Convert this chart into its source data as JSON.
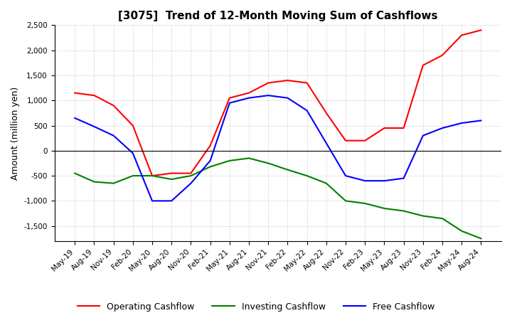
{
  "title": "[3075]  Trend of 12-Month Moving Sum of Cashflows",
  "ylabel": "Amount (million yen)",
  "ylim": [
    -1800,
    2500
  ],
  "yticks": [
    -1500,
    -1000,
    -500,
    0,
    500,
    1000,
    1500,
    2000,
    2500
  ],
  "x_labels": [
    "May-19",
    "Aug-19",
    "Nov-19",
    "Feb-20",
    "May-20",
    "Aug-20",
    "Nov-20",
    "Feb-21",
    "May-21",
    "Aug-21",
    "Nov-21",
    "Feb-22",
    "May-22",
    "Aug-22",
    "Nov-22",
    "Feb-23",
    "May-23",
    "Aug-23",
    "Nov-23",
    "Feb-24",
    "May-24",
    "Aug-24"
  ],
  "operating_cashflow": [
    1150,
    1100,
    900,
    500,
    -500,
    -450,
    -450,
    100,
    1050,
    1150,
    1350,
    1400,
    1350,
    750,
    200,
    200,
    450,
    450,
    1700,
    1900,
    2300,
    2400
  ],
  "investing_cashflow": [
    -450,
    -620,
    -650,
    -500,
    -500,
    -570,
    -500,
    -320,
    -200,
    -150,
    -250,
    -380,
    -500,
    -650,
    -1000,
    -1050,
    -1150,
    -1200,
    -1300,
    -1350,
    -1600,
    -1750
  ],
  "free_cashflow": [
    650,
    480,
    300,
    -50,
    -1000,
    -1000,
    -650,
    -200,
    950,
    1050,
    1100,
    1050,
    800,
    150,
    -500,
    -600,
    -600,
    -550,
    300,
    450,
    550,
    600
  ],
  "operating_color": "#ff0000",
  "investing_color": "#008000",
  "free_color": "#0000ff",
  "grid_color": "#aaaaaa",
  "background_color": "#ffffff"
}
